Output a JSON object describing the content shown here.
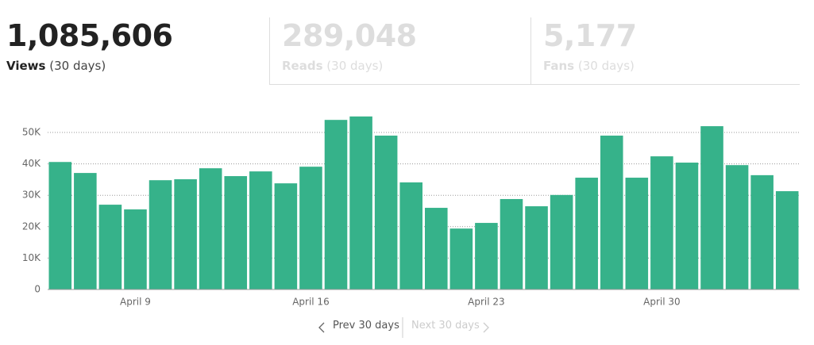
{
  "stats": [
    {
      "value": "1,085,606",
      "label": "Views",
      "period": "(30 days)"
    },
    {
      "value": "289,048",
      "label": "Reads",
      "period": "(30 days)"
    },
    {
      "value": "5,177",
      "label": "Fans",
      "period": "(30 days)"
    }
  ],
  "chart_data": {
    "type": "bar",
    "categories": [
      null,
      null,
      null,
      "April 9",
      null,
      null,
      null,
      null,
      null,
      null,
      "April 16",
      null,
      null,
      null,
      null,
      null,
      null,
      "April 23",
      null,
      null,
      null,
      null,
      null,
      null,
      "April 30",
      null,
      null,
      null,
      null,
      null
    ],
    "values": [
      40600,
      37100,
      27000,
      25500,
      34800,
      35100,
      38600,
      36100,
      37600,
      33800,
      39100,
      54000,
      55100,
      49000,
      34100,
      26000,
      19400,
      21200,
      28800,
      26500,
      30100,
      35600,
      49000,
      35600,
      42400,
      40400,
      52000,
      39600,
      36400,
      31300
    ],
    "color": "#36b28a",
    "ylim": [
      0,
      57000
    ],
    "yticks": [
      0,
      {
        "value": 10000,
        "label": "10K"
      },
      {
        "value": 20000,
        "label": "20K"
      },
      {
        "value": 30000,
        "label": "30K"
      },
      {
        "value": 40000,
        "label": "40K"
      },
      {
        "value": 50000,
        "label": "50K"
      }
    ],
    "grid": true
  },
  "pagination": {
    "prev": "Prev 30 days",
    "next": "Next 30 days"
  }
}
